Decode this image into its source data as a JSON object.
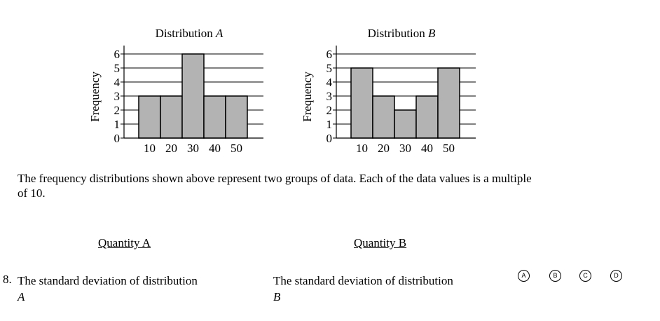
{
  "chart_data": [
    {
      "type": "bar",
      "title": "Distribution A",
      "title_prefix": "Distribution",
      "title_var": "A",
      "xlabel": "",
      "ylabel": "Frequency",
      "categories": [
        "10",
        "20",
        "30",
        "40",
        "50"
      ],
      "values": [
        3,
        3,
        6,
        3,
        3
      ],
      "yticks": [
        "0",
        "1",
        "2",
        "3",
        "4",
        "5",
        "6"
      ],
      "ylim": [
        0,
        6
      ],
      "grid": true,
      "bar_color": "#b3b3b3"
    },
    {
      "type": "bar",
      "title": "Distribution B",
      "title_prefix": "Distribution",
      "title_var": "B",
      "xlabel": "",
      "ylabel": "Frequency",
      "categories": [
        "10",
        "20",
        "30",
        "40",
        "50"
      ],
      "values": [
        5,
        3,
        2,
        3,
        5
      ],
      "yticks": [
        "0",
        "1",
        "2",
        "3",
        "4",
        "5",
        "6"
      ],
      "ylim": [
        0,
        6
      ],
      "grid": true,
      "bar_color": "#b3b3b3"
    }
  ],
  "description": "The frequency distributions shown above represent two groups of data. Each of the data values is a multiple of 10.",
  "question": {
    "number": "8.",
    "quantity_a": {
      "heading": "Quantity A",
      "text": "The standard deviation of distribution",
      "var": "A"
    },
    "quantity_b": {
      "heading": "Quantity B",
      "text": "The standard deviation of distribution",
      "var": "B"
    },
    "choices": [
      "A",
      "B",
      "C",
      "D"
    ]
  }
}
